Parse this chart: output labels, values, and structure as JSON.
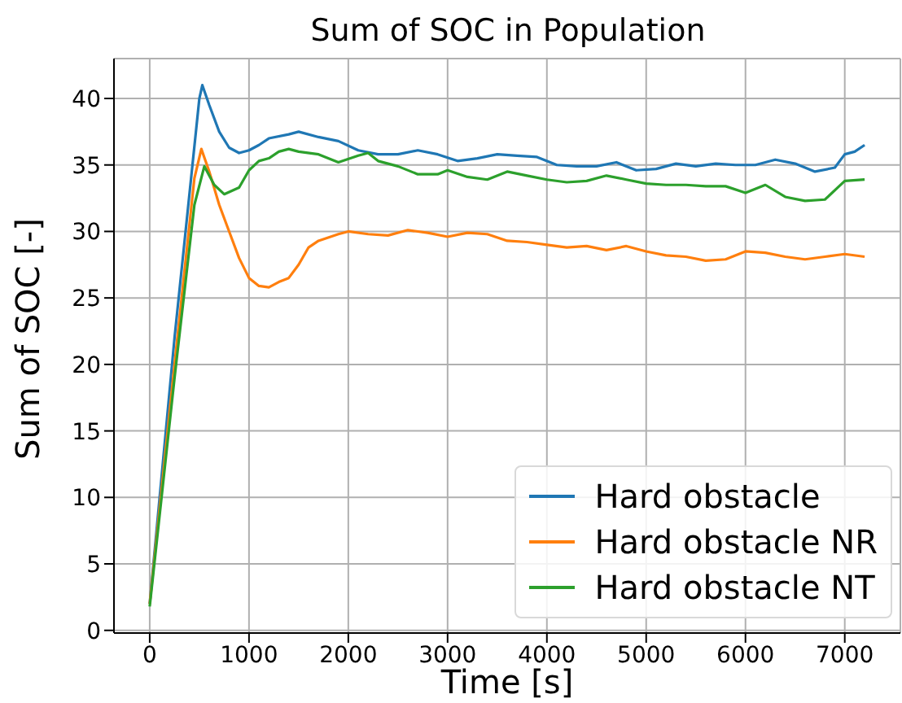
{
  "chart_data": {
    "type": "line",
    "title": "Sum of SOC in Population",
    "xlabel": "Time [s]",
    "ylabel": "Sum of SOC [-]",
    "xlim": [
      -360,
      7560
    ],
    "xticks": [
      0,
      1000,
      2000,
      3000,
      4000,
      5000,
      6000,
      7000
    ],
    "ylim": [
      -0.2,
      43
    ],
    "yticks": [
      0,
      5,
      10,
      15,
      20,
      25,
      30,
      35,
      40
    ],
    "grid": true,
    "legend": "bottom right",
    "marker": "none",
    "line_style": "solid",
    "series": [
      {
        "name": "Hard obstacle",
        "color": "#1f77b4",
        "x": [
          0,
          250,
          500,
          530,
          600,
          700,
          800,
          900,
          1000,
          1100,
          1200,
          1400,
          1500,
          1700,
          1900,
          2100,
          2300,
          2500,
          2700,
          2900,
          3100,
          3300,
          3500,
          3700,
          3900,
          4100,
          4300,
          4500,
          4700,
          4900,
          5100,
          5300,
          5500,
          5700,
          5900,
          6100,
          6300,
          6500,
          6700,
          6900,
          7000,
          7100,
          7200
        ],
        "values": [
          2,
          22,
          40,
          41,
          39.5,
          37.5,
          36.3,
          35.9,
          36.1,
          36.5,
          37,
          37.3,
          37.5,
          37.1,
          36.8,
          36.1,
          35.8,
          35.8,
          36.1,
          35.8,
          35.3,
          35.5,
          35.8,
          35.7,
          35.6,
          35,
          34.9,
          34.9,
          35.2,
          34.6,
          34.7,
          35.1,
          34.9,
          35.1,
          35,
          35,
          35.4,
          35.1,
          34.5,
          34.8,
          35.8,
          36,
          36.5
        ]
      },
      {
        "name": "Hard obstacle NR",
        "color": "#ff7f0e",
        "x": [
          0,
          250,
          450,
          520,
          600,
          700,
          800,
          900,
          1000,
          1100,
          1200,
          1300,
          1400,
          1500,
          1600,
          1700,
          1900,
          2000,
          2200,
          2400,
          2600,
          2800,
          3000,
          3200,
          3400,
          3600,
          3800,
          4000,
          4200,
          4400,
          4600,
          4800,
          5000,
          5200,
          5400,
          5600,
          5800,
          6000,
          6200,
          6400,
          6600,
          6800,
          7000,
          7200
        ],
        "values": [
          2,
          20,
          34,
          36.2,
          34.5,
          32,
          30,
          28,
          26.5,
          25.9,
          25.8,
          26.2,
          26.5,
          27.5,
          28.8,
          29.3,
          29.8,
          30,
          29.8,
          29.7,
          30.1,
          29.9,
          29.6,
          29.9,
          29.8,
          29.3,
          29.2,
          29,
          28.8,
          28.9,
          28.6,
          28.9,
          28.5,
          28.2,
          28.1,
          27.8,
          27.9,
          28.5,
          28.4,
          28.1,
          27.9,
          28.1,
          28.3,
          28.1
        ]
      },
      {
        "name": "Hard obstacle NT",
        "color": "#2ca02c",
        "x": [
          0,
          250,
          450,
          550,
          650,
          750,
          900,
          1000,
          1100,
          1200,
          1300,
          1400,
          1500,
          1700,
          1900,
          2100,
          2200,
          2300,
          2500,
          2700,
          2900,
          3000,
          3200,
          3400,
          3600,
          3800,
          4000,
          4200,
          4400,
          4600,
          4800,
          5000,
          5200,
          5400,
          5600,
          5800,
          6000,
          6200,
          6400,
          6600,
          6800,
          7000,
          7200
        ],
        "values": [
          1.8,
          19,
          32,
          34.9,
          33.5,
          32.8,
          33.3,
          34.6,
          35.3,
          35.5,
          36,
          36.2,
          36,
          35.8,
          35.2,
          35.7,
          35.9,
          35.3,
          34.9,
          34.3,
          34.3,
          34.6,
          34.1,
          33.9,
          34.5,
          34.2,
          33.9,
          33.7,
          33.8,
          34.2,
          33.9,
          33.6,
          33.5,
          33.5,
          33.4,
          33.4,
          32.9,
          33.5,
          32.6,
          32.3,
          32.4,
          33.8,
          33.9
        ]
      }
    ]
  }
}
